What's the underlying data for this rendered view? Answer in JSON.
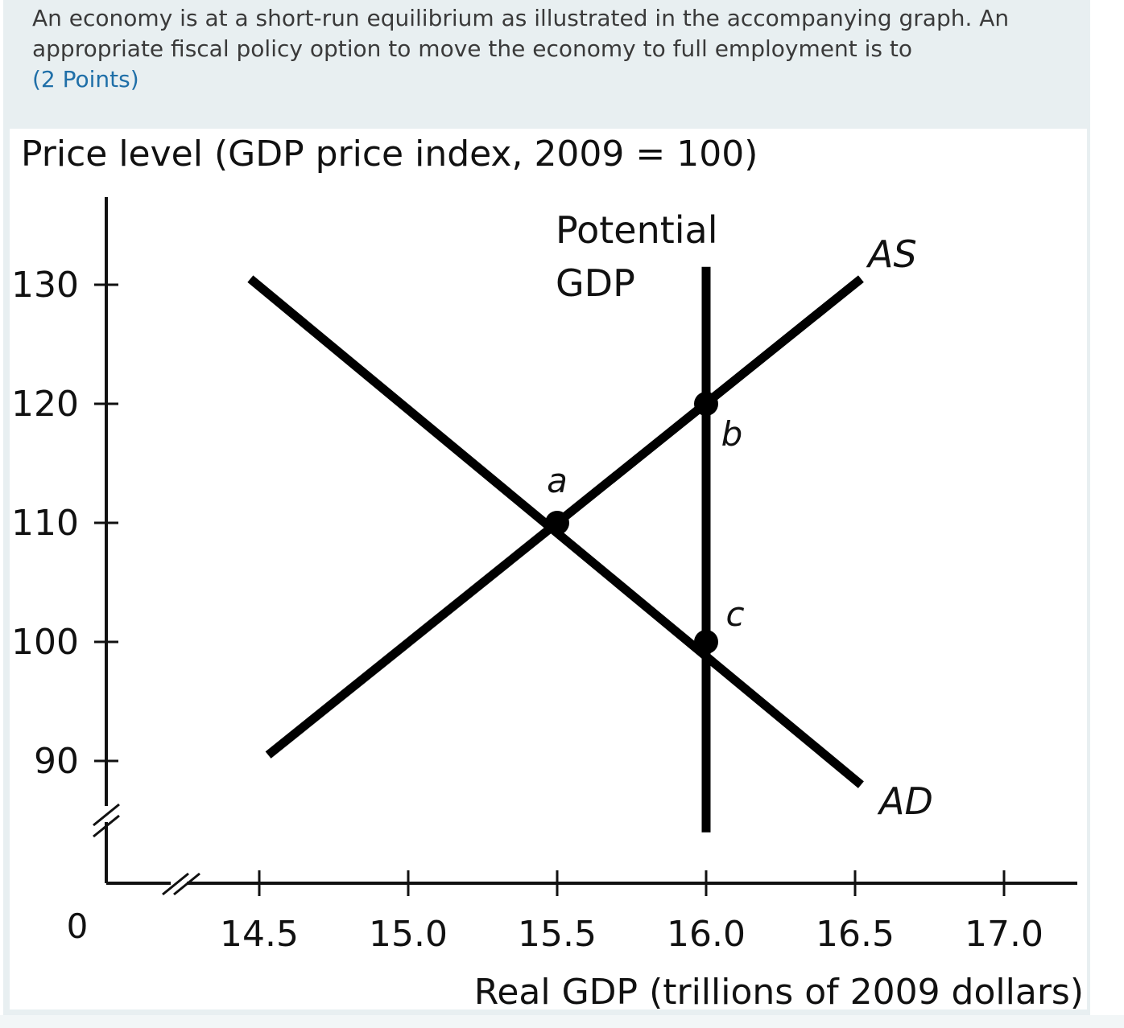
{
  "question": {
    "line1": "An economy is at a short-run equilibrium as illustrated in the accompanying graph. An",
    "line2": "appropriate fiscal policy option to move the economy to full employment is to",
    "points": "(2 Points)"
  },
  "chart_data": {
    "type": "line",
    "title": "",
    "ylabel": "Price level (GDP price index, 2009 = 100)",
    "xlabel": "Real GDP (trillions of 2009 dollars)",
    "xlim": [
      14.0,
      17.2
    ],
    "ylim": [
      85,
      136
    ],
    "x_origin_label": "0",
    "x_ticks": [
      14.5,
      15.0,
      15.5,
      16.0,
      16.5,
      17.0
    ],
    "x_tick_labels": [
      "14.5",
      "15.0",
      "15.5",
      "16.0",
      "16.5",
      "17.0"
    ],
    "y_ticks": [
      90,
      100,
      110,
      120,
      130
    ],
    "y_tick_labels": [
      "90",
      "100",
      "110",
      "120",
      "130"
    ],
    "axis_breaks": true,
    "grid": false,
    "series": [
      {
        "name": "AS",
        "x": [
          14.53,
          16.52
        ],
        "y": [
          90.5,
          130.5
        ]
      },
      {
        "name": "AD",
        "x": [
          14.47,
          16.52
        ],
        "y": [
          130.5,
          88.0
        ]
      },
      {
        "name": "Potential GDP",
        "x": [
          16.0,
          16.0
        ],
        "y": [
          84.0,
          131.5
        ]
      }
    ],
    "annotations": [
      {
        "text": "Potential",
        "x": 15.8,
        "y": 134
      },
      {
        "text": "GDP",
        "x": 15.8,
        "y": 130
      },
      {
        "text": "AS",
        "x": 16.62,
        "y": 132
      },
      {
        "text": "AD",
        "x": 16.62,
        "y": 86.5
      }
    ],
    "points": [
      {
        "label": "a",
        "x": 15.5,
        "y": 110
      },
      {
        "label": "b",
        "x": 16.0,
        "y": 120
      },
      {
        "label": "c",
        "x": 16.0,
        "y": 100
      }
    ]
  }
}
